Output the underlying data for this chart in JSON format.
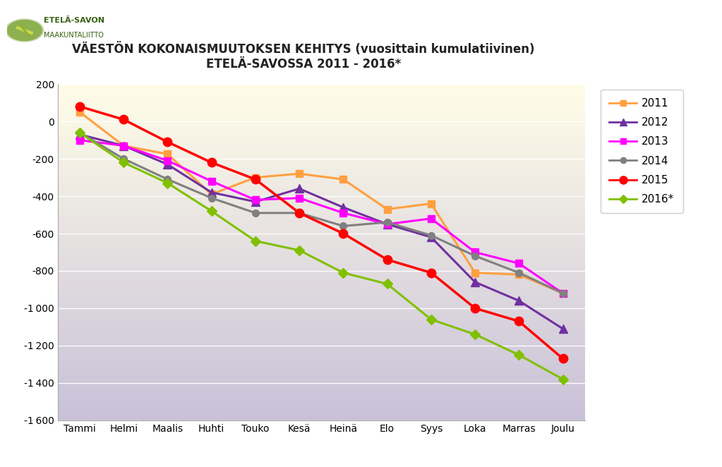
{
  "title_line1": "VÄESTÖN KOKONAISMUUTOKSEN KEHITYS (vuosittain kumulatiivinen)",
  "title_line2": "ETELÄ-SAVOSSA 2011 - 2016*",
  "x_labels": [
    "Tammi",
    "Helmi",
    "Maalis",
    "Huhti",
    "Touko",
    "Kesä",
    "Heinä",
    "Elo",
    "Syys",
    "Loka",
    "Marras",
    "Joulu"
  ],
  "ylim": [
    -1600,
    200
  ],
  "yticks": [
    200,
    0,
    -200,
    -400,
    -600,
    -800,
    -1000,
    -1200,
    -1400,
    -1600
  ],
  "series": {
    "2011": {
      "color": "#FFA040",
      "marker": "s",
      "values": [
        50,
        -130,
        -175,
        -390,
        -300,
        -280,
        -310,
        -470,
        -440,
        -810,
        -820,
        -920
      ]
    },
    "2012": {
      "color": "#7030A0",
      "marker": "^",
      "values": [
        -70,
        -130,
        -230,
        -380,
        -430,
        -360,
        -460,
        -550,
        -620,
        -860,
        -960,
        -1110
      ]
    },
    "2013": {
      "color": "#FF00FF",
      "marker": "s",
      "values": [
        -100,
        -130,
        -210,
        -320,
        -420,
        -410,
        -490,
        -550,
        -520,
        -700,
        -760,
        -920
      ]
    },
    "2014": {
      "color": "#808080",
      "marker": "o",
      "values": [
        -60,
        -200,
        -310,
        -410,
        -490,
        -490,
        -560,
        -540,
        -610,
        -720,
        -810,
        -920
      ]
    },
    "2015": {
      "color": "#FF0000",
      "marker": "o",
      "values": [
        80,
        10,
        -110,
        -220,
        -310,
        -490,
        -600,
        -740,
        -810,
        -1000,
        -1070,
        -1270
      ]
    },
    "2016*": {
      "color": "#80C000",
      "marker": "D",
      "values": [
        -60,
        -220,
        -330,
        -480,
        -640,
        -690,
        -810,
        -870,
        -1060,
        -1140,
        -1250,
        -1380
      ]
    }
  },
  "plot_area_color_top": "#FFFDE8",
  "plot_area_color_bottom": "#C8C0D8",
  "outer_bg_color": "#FFFFFF",
  "legend_order": [
    "2011",
    "2012",
    "2013",
    "2014",
    "2015",
    "2016*"
  ],
  "title_fontsize": 12,
  "axis_label_fontsize": 10,
  "logo_text_line1": "ETELÄ-SAVON",
  "logo_text_line2": "MAAKUNTALIITTO"
}
